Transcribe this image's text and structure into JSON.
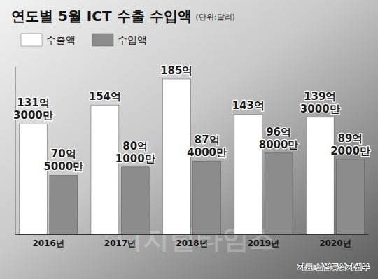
{
  "chart_data": {
    "type": "bar",
    "title": "연도별 5월 ICT 수출  수입액",
    "subtitle": "(단위:달러)",
    "source": "자료:산업통상자원부",
    "watermark": "디지털타임스",
    "categories": [
      "2016년",
      "2017년",
      "2018년",
      "2019년",
      "2020년"
    ],
    "series": [
      {
        "name": "수출액",
        "color": "#ffffff",
        "values": [
          13130000000,
          15400000000,
          18500000000,
          14300000000,
          13930000000
        ],
        "value_labels": [
          "131억\n3000만",
          "154억",
          "185억",
          "143억",
          "139억\n3000만"
        ]
      },
      {
        "name": "수입액",
        "color": "#8c8c8c",
        "values": [
          7050000000,
          8010000000,
          8740000000,
          9680000000,
          8920000000
        ],
        "value_labels": [
          "70억\n5000만",
          "80억\n1000만",
          "87억\n4000만",
          "96억\n8000만",
          "89억\n2000만"
        ]
      }
    ],
    "ylim": [
      0,
      20000000000
    ],
    "data_labels": true,
    "legend": "top-left",
    "tick_labels": "x",
    "grid": false
  }
}
